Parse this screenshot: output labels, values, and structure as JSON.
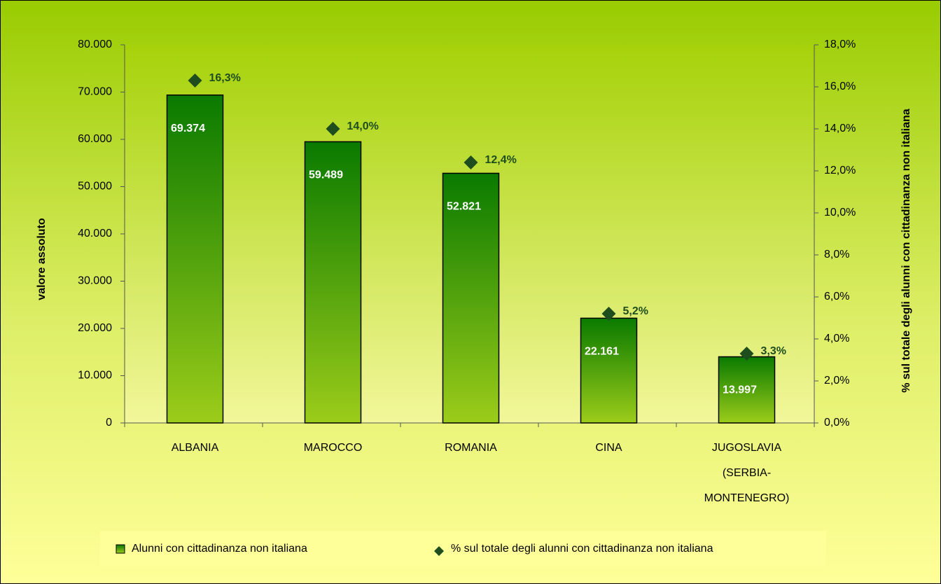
{
  "chart_data": {
    "type": "bar",
    "categories": [
      "ALBANIA",
      "MAROCCO",
      "ROMANIA",
      "CINA",
      "JUGOSLAVIA (SERBIA-MONTENEGRO)"
    ],
    "series": [
      {
        "name": "Alunni con cittadinanza non italiana",
        "type": "bar",
        "color": "#0a7a00",
        "values": [
          69374,
          59489,
          52821,
          22161,
          13997
        ],
        "value_labels": [
          "69.374",
          "59.489",
          "52.821",
          "22.161",
          "13.997"
        ]
      },
      {
        "name": "% sul totale degli alunni con cittadinanza non italiana",
        "type": "scatter",
        "axis": "y2",
        "color": "#1e4d1e",
        "values": [
          16.3,
          14.0,
          12.4,
          5.2,
          3.3
        ],
        "value_labels": [
          "16,3%",
          "14,0%",
          "12,4%",
          "5,2%",
          "3,3%"
        ]
      }
    ],
    "ylabel": "valore assoluto",
    "y2label": "% sul totale degli alunni con cittadinanza non italiana",
    "ylim": [
      0,
      80000
    ],
    "yticks": [
      0,
      {
        "value": 10000,
        "label": "10.000"
      },
      {
        "value": 20000,
        "label": "20.000"
      },
      {
        "value": 30000,
        "label": "30.000"
      },
      {
        "value": 40000,
        "label": "40.000"
      },
      {
        "value": 50000,
        "label": "50.000"
      },
      {
        "value": 60000,
        "label": "60.000"
      },
      {
        "value": 70000,
        "label": "70.000"
      },
      {
        "value": 80000,
        "label": "80.000"
      }
    ],
    "y2lim": [
      0,
      18
    ],
    "y2ticks": [
      {
        "value": 0,
        "label": "0,0%"
      },
      {
        "value": 2,
        "label": "2,0%"
      },
      {
        "value": 4,
        "label": "4,0%"
      },
      {
        "value": 6,
        "label": "6,0%"
      },
      {
        "value": 8,
        "label": "8,0%"
      },
      {
        "value": 10,
        "label": "10,0%"
      },
      {
        "value": 12,
        "label": "12,0%"
      },
      {
        "value": 14,
        "label": "14,0%"
      },
      {
        "value": 16,
        "label": "16,0%"
      },
      {
        "value": 18,
        "label": "18,0%"
      }
    ]
  }
}
